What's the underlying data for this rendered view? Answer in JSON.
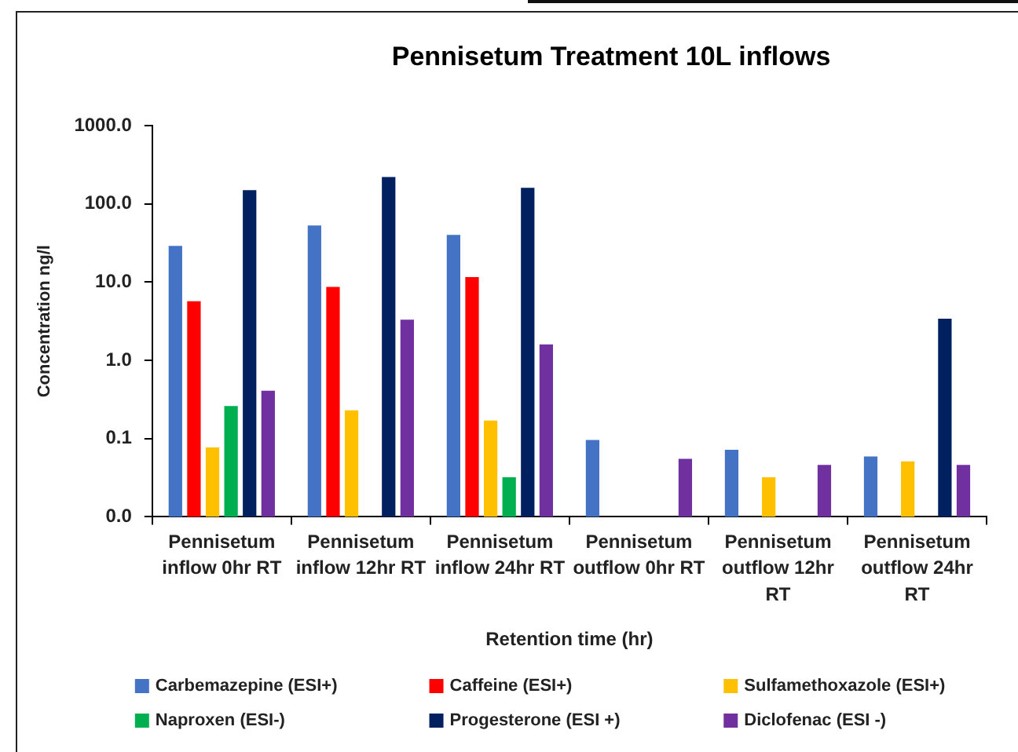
{
  "chart_data": {
    "type": "bar",
    "title": "Pennisetum Treatment 10L inflows",
    "xlabel": "Retention time (hr)",
    "ylabel": "Concentration ng/l",
    "categories": [
      "Pennisetum inflow 0hr RT",
      "Pennisetum inflow 12hr RT",
      "Pennisetum inflow 24hr RT",
      "Pennisetum outflow 0hr RT",
      "Pennisetum outflow 12hr RT",
      "Pennisetum outflow 24hr RT"
    ],
    "series": [
      {
        "name": "Carbemazepine (ESI+)",
        "color": "#4472c4",
        "values": [
          29,
          53,
          40,
          0.096,
          0.072,
          0.059
        ]
      },
      {
        "name": "Caffeine (ESI+)",
        "color": "#ff0000",
        "values": [
          5.7,
          8.7,
          11.6,
          null,
          null,
          null
        ]
      },
      {
        "name": "Sulfamethoxazole (ESI+)",
        "color": "#ffc000",
        "values": [
          0.077,
          0.23,
          0.17,
          null,
          0.032,
          0.051
        ]
      },
      {
        "name": "Naproxen (ESI-)",
        "color": "#00b050",
        "values": [
          0.26,
          null,
          0.032,
          null,
          null,
          null
        ]
      },
      {
        "name": "Progesterone (ESI +)",
        "color": "#002060",
        "values": [
          150,
          220,
          160,
          null,
          null,
          3.4
        ]
      },
      {
        "name": "Diclofenac (ESI -)",
        "color": "#7030a0",
        "values": [
          0.41,
          3.3,
          1.6,
          0.055,
          0.046,
          0.046
        ]
      }
    ],
    "log": true,
    "ylim": [
      0.01,
      1000
    ],
    "yticks": [
      {
        "value": 0.01,
        "label": "0.0"
      },
      {
        "value": 0.1,
        "label": "0.1"
      },
      {
        "value": 1,
        "label": "1.0"
      },
      {
        "value": 10,
        "label": "10.0"
      },
      {
        "value": 100,
        "label": "100.0"
      },
      {
        "value": 1000,
        "label": "1000.0"
      }
    ],
    "grid": false,
    "legend": "bottom"
  }
}
